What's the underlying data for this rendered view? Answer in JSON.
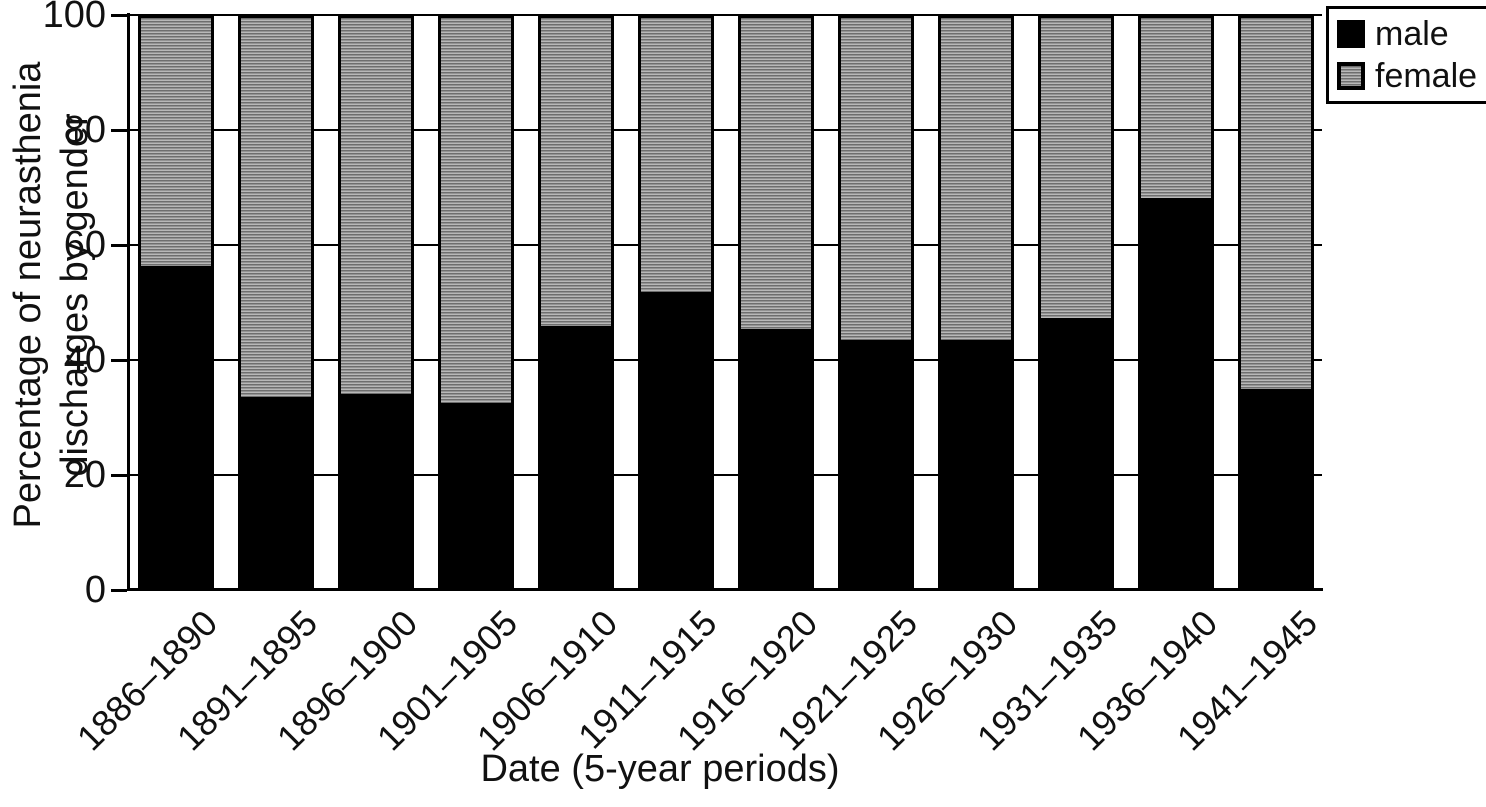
{
  "chart_data": {
    "type": "bar",
    "stacked": true,
    "title": "",
    "xlabel": "Date (5-year periods)",
    "ylabel": "Percentage of neurasthenia discharges by gender",
    "ylabel_lines": [
      "Percentage of neurasthenia",
      "discharges by gender"
    ],
    "categories": [
      "1886–1890",
      "1891–1895",
      "1896–1900",
      "1901–1905",
      "1906–1910",
      "1911–1915",
      "1916–1920",
      "1921–1925",
      "1926–1930",
      "1931–1935",
      "1936–1940",
      "1941–1945"
    ],
    "series": [
      {
        "name": "male",
        "color": "#000000",
        "values": [
          56,
          33,
          33.5,
          32,
          45.5,
          51.5,
          45,
          43,
          43,
          47,
          68,
          34.5
        ]
      },
      {
        "name": "female",
        "pattern": "horizontal-stripes",
        "pattern_colors": [
          "#6e6e6e",
          "#b8b8b8"
        ],
        "values": [
          44,
          67,
          66.5,
          68,
          54.5,
          48.5,
          55,
          57,
          57,
          53,
          32,
          65.5
        ]
      }
    ],
    "y_ticks": [
      0,
      20,
      40,
      60,
      80,
      100
    ],
    "ylim": [
      0,
      100
    ],
    "grid": "horizontal gridlines, visible in gaps between bars",
    "legend_position": "top-right"
  },
  "legend": {
    "male_label": "male",
    "female_label": "female"
  },
  "colors": {
    "male": "#000000",
    "hatch_dark": "#6e6e6e",
    "hatch_light": "#b8b8b8",
    "axis": "#000000",
    "background": "#ffffff"
  }
}
